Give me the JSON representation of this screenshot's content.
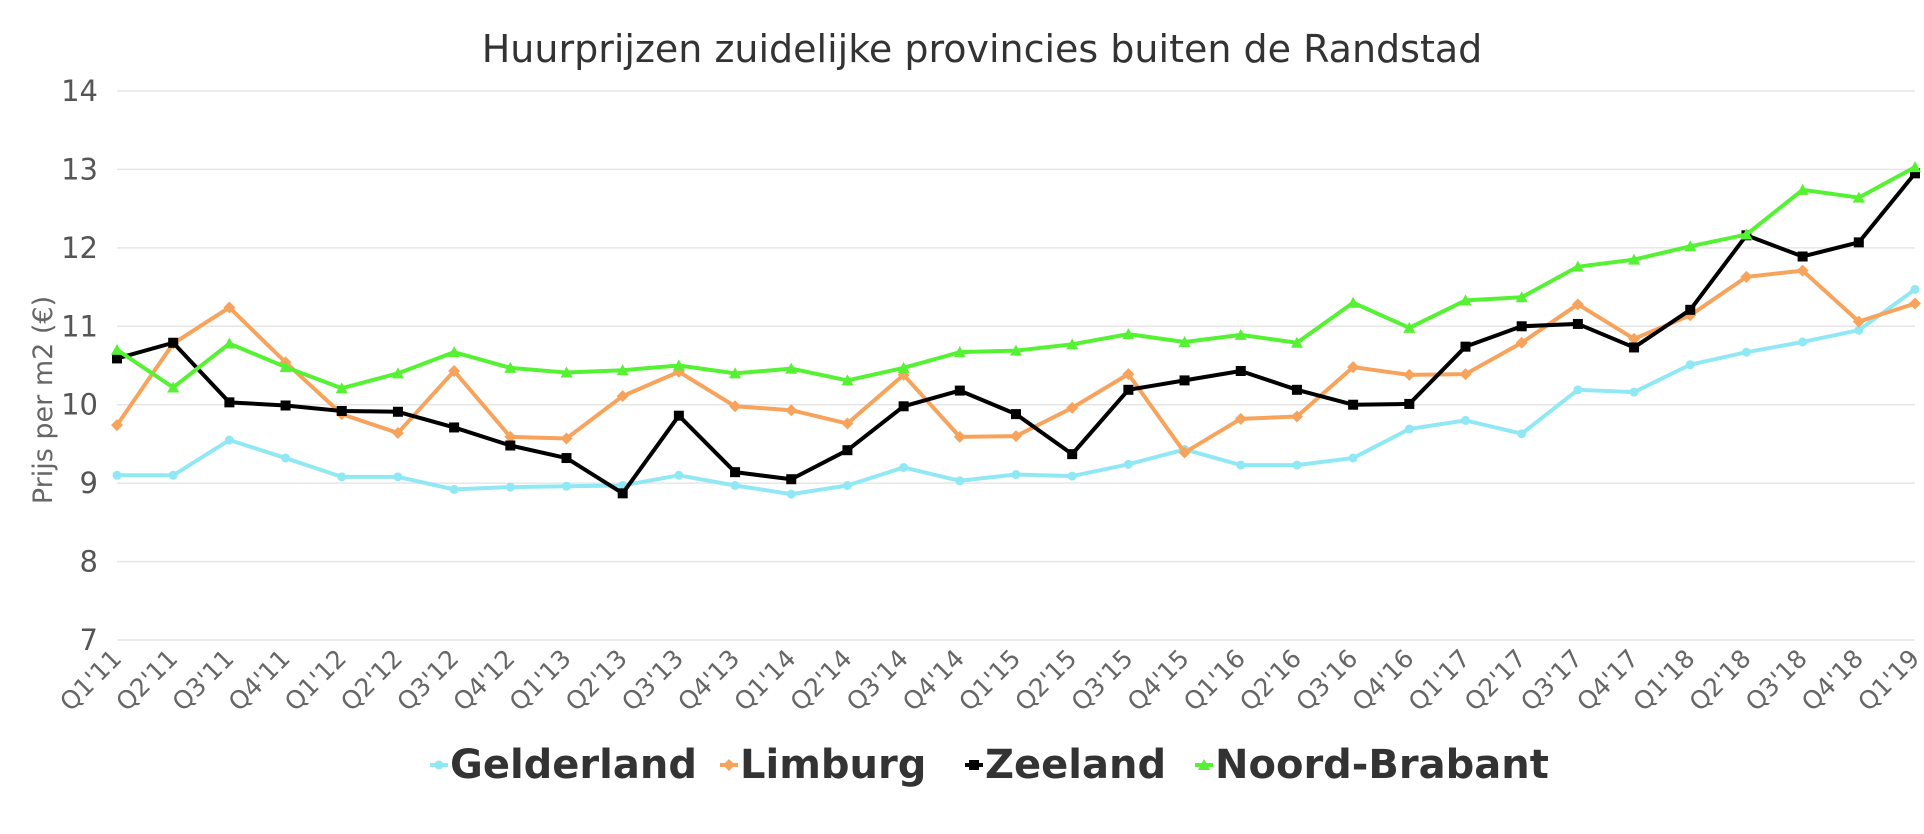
{
  "chart_data": {
    "type": "line",
    "title": "Huurprijzen zuidelijke provincies buiten de Randstad",
    "xlabel": "",
    "ylabel": "Prijs per m2 (€)",
    "ylim": [
      7,
      14
    ],
    "yticks": [
      "7",
      "8",
      "9",
      "10",
      "11",
      "12",
      "13",
      "14"
    ],
    "grid": true,
    "legend": "bottom",
    "categories": [
      "Q1'11",
      "Q2'11",
      "Q3'11",
      "Q4'11",
      "Q1'12",
      "Q2'12",
      "Q3'12",
      "Q4'12",
      "Q1'13",
      "Q2'13",
      "Q3'13",
      "Q4'13",
      "Q1'14",
      "Q2'14",
      "Q3'14",
      "Q4'14",
      "Q1'15",
      "Q2'15",
      "Q3'15",
      "Q4'15",
      "Q1'16",
      "Q2'16",
      "Q3'16",
      "Q4'16",
      "Q1'17",
      "Q2'17",
      "Q3'17",
      "Q4'17",
      "Q1'18",
      "Q2'18",
      "Q3'18",
      "Q4'18",
      "Q1'19"
    ],
    "series": [
      {
        "name": "Gelderland",
        "color": "#91e8f5",
        "marker": "circle",
        "values": [
          9.1,
          9.1,
          9.55,
          9.32,
          9.08,
          9.08,
          8.92,
          8.95,
          8.96,
          8.97,
          9.1,
          8.97,
          8.86,
          8.97,
          9.2,
          9.03,
          9.11,
          9.09,
          9.24,
          9.43,
          9.23,
          9.23,
          9.32,
          9.69,
          9.8,
          9.63,
          10.19,
          10.16,
          10.51,
          10.67,
          10.8,
          10.95,
          11.47
        ]
      },
      {
        "name": "Limburg",
        "color": "#f7a35c",
        "marker": "diamond",
        "values": [
          9.74,
          10.78,
          11.24,
          10.54,
          9.88,
          9.64,
          10.43,
          9.59,
          9.57,
          10.11,
          10.42,
          9.98,
          9.93,
          9.76,
          10.38,
          9.59,
          9.6,
          9.96,
          10.39,
          9.39,
          9.82,
          9.85,
          10.48,
          10.38,
          10.39,
          10.79,
          11.28,
          10.84,
          11.14,
          11.63,
          11.71,
          11.06,
          11.29
        ]
      },
      {
        "name": "Zeeland",
        "color": "#000000",
        "marker": "square",
        "values": [
          10.59,
          10.79,
          10.03,
          9.99,
          9.92,
          9.91,
          9.71,
          9.48,
          9.32,
          8.87,
          9.86,
          9.14,
          9.05,
          9.42,
          9.98,
          10.18,
          9.88,
          9.37,
          10.19,
          10.31,
          10.43,
          10.19,
          10.0,
          10.01,
          10.74,
          11.0,
          11.03,
          10.73,
          11.21,
          12.16,
          11.89,
          12.07,
          12.95
        ]
      },
      {
        "name": "Noord-Brabant",
        "color": "#55f233",
        "marker": "triangle",
        "values": [
          10.7,
          10.22,
          10.78,
          10.48,
          10.21,
          10.4,
          10.67,
          10.47,
          10.41,
          10.44,
          10.5,
          10.4,
          10.46,
          10.31,
          10.47,
          10.67,
          10.69,
          10.77,
          10.9,
          10.8,
          10.89,
          10.79,
          11.3,
          10.98,
          11.33,
          11.37,
          11.76,
          11.85,
          12.02,
          12.17,
          12.74,
          12.64,
          13.03
        ]
      }
    ]
  }
}
